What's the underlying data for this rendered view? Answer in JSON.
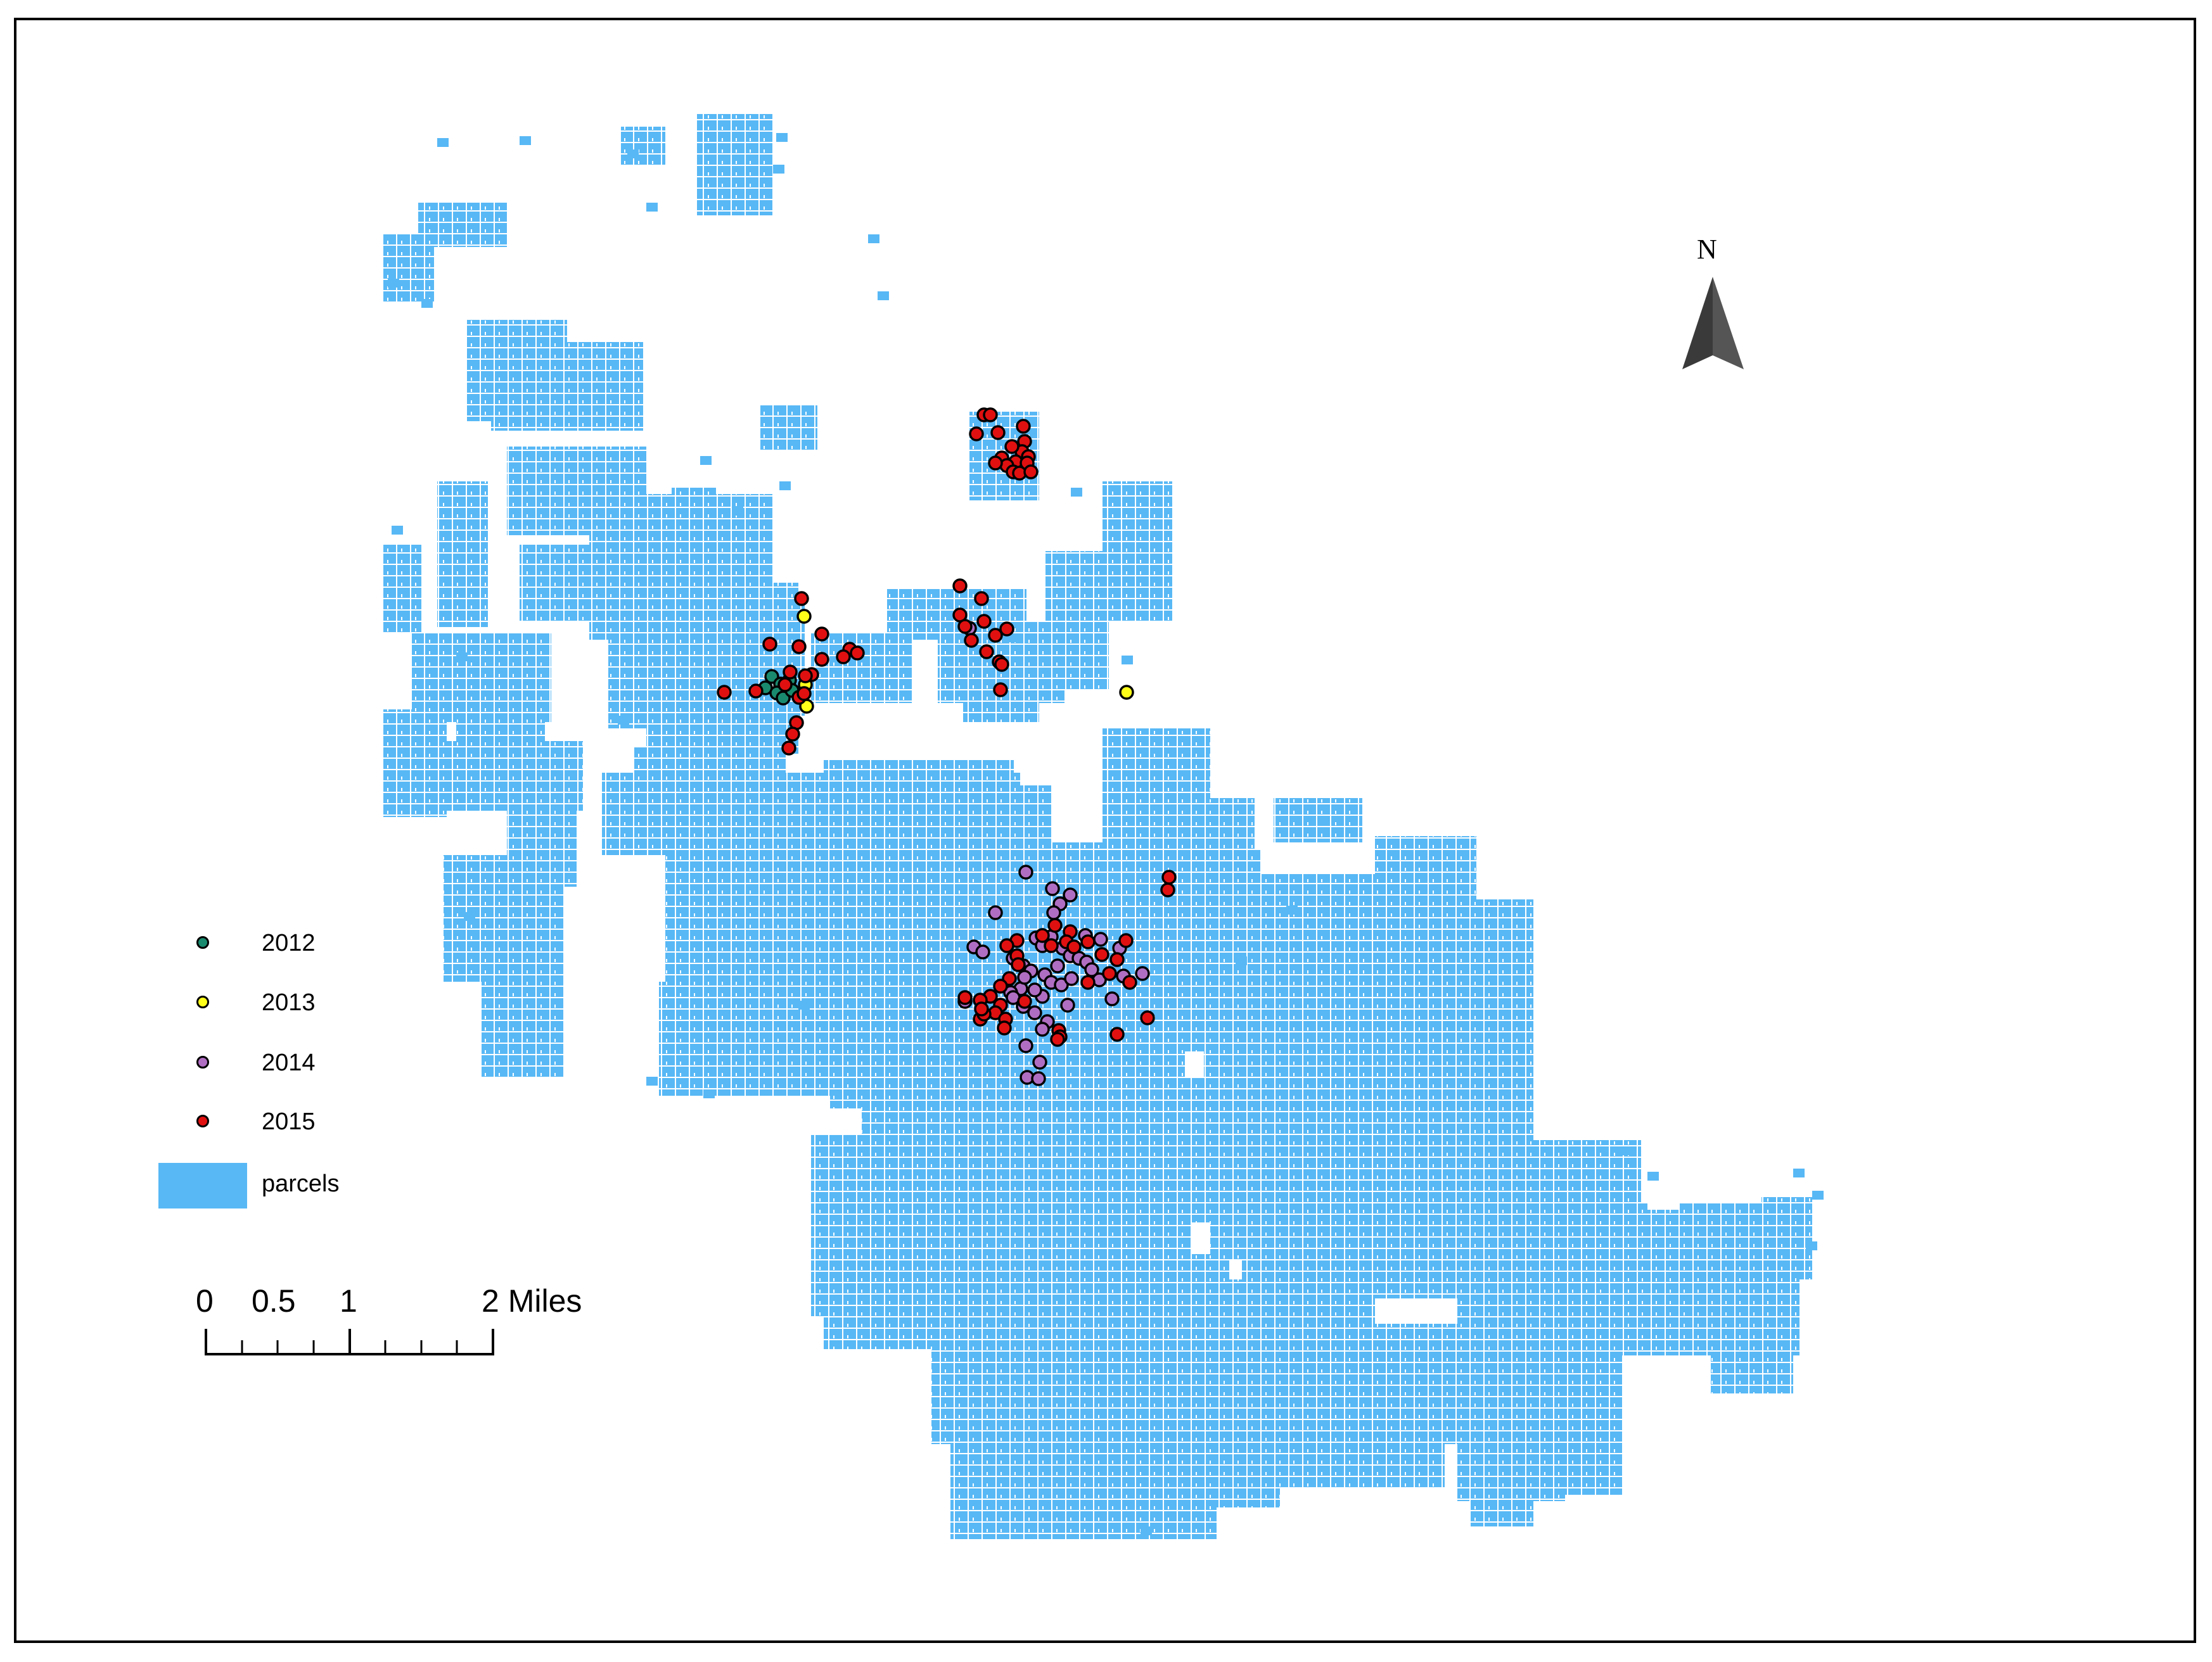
{
  "north_arrow": {
    "label": "N"
  },
  "legend": {
    "items": [
      {
        "label": "2012",
        "color": "#1a8a6e"
      },
      {
        "label": "2013",
        "color": "#ffff1a"
      },
      {
        "label": "2014",
        "color": "#b06ec2"
      },
      {
        "label": "2015",
        "color": "#e01010"
      }
    ],
    "parcels": {
      "label": "parcels",
      "color": "#58b8f5"
    }
  },
  "scale_bar": {
    "labels": [
      "0",
      "0.5",
      "1",
      "2 Miles"
    ]
  },
  "colors": {
    "parcels": "#58b8f5",
    "frame": "#000000",
    "point_outline": "#000000"
  }
}
